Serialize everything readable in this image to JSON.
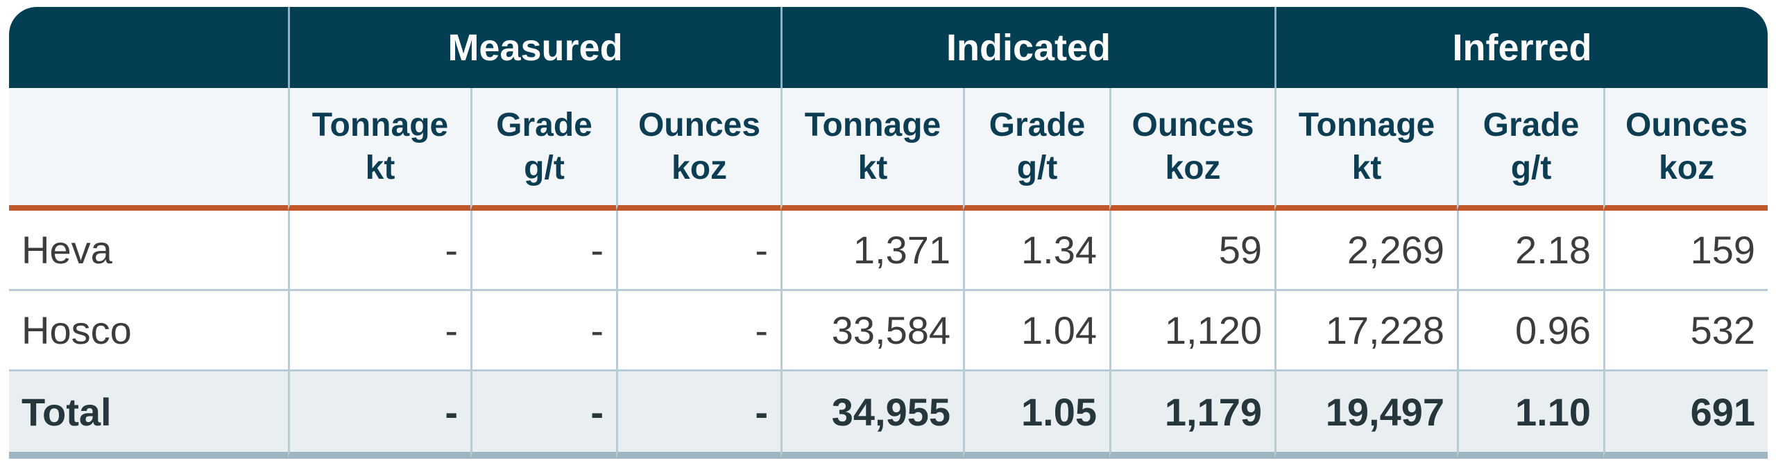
{
  "table": {
    "groups": [
      "Measured",
      "Indicated",
      "Inferred"
    ],
    "columns": [
      {
        "name": "Tonnage",
        "unit": "kt"
      },
      {
        "name": "Grade",
        "unit": "g/t"
      },
      {
        "name": "Ounces",
        "unit": "koz"
      },
      {
        "name": "Tonnage",
        "unit": "kt"
      },
      {
        "name": "Grade",
        "unit": "g/t"
      },
      {
        "name": "Ounces",
        "unit": "koz"
      },
      {
        "name": "Tonnage",
        "unit": "kt"
      },
      {
        "name": "Grade",
        "unit": "g/t"
      },
      {
        "name": "Ounces",
        "unit": "koz"
      }
    ],
    "rows": [
      {
        "label": "Heva",
        "cells": [
          "-",
          "-",
          "-",
          "1,371",
          "1.34",
          "59",
          "2,269",
          "2.18",
          "159"
        ]
      },
      {
        "label": "Hosco",
        "cells": [
          "-",
          "-",
          "-",
          "33,584",
          "1.04",
          "1,120",
          "17,228",
          "0.96",
          "532"
        ]
      },
      {
        "label": "Total",
        "cells": [
          "-",
          "-",
          "-",
          "34,955",
          "1.05",
          "1,179",
          "19,497",
          "1.10",
          "691"
        ]
      }
    ]
  }
}
